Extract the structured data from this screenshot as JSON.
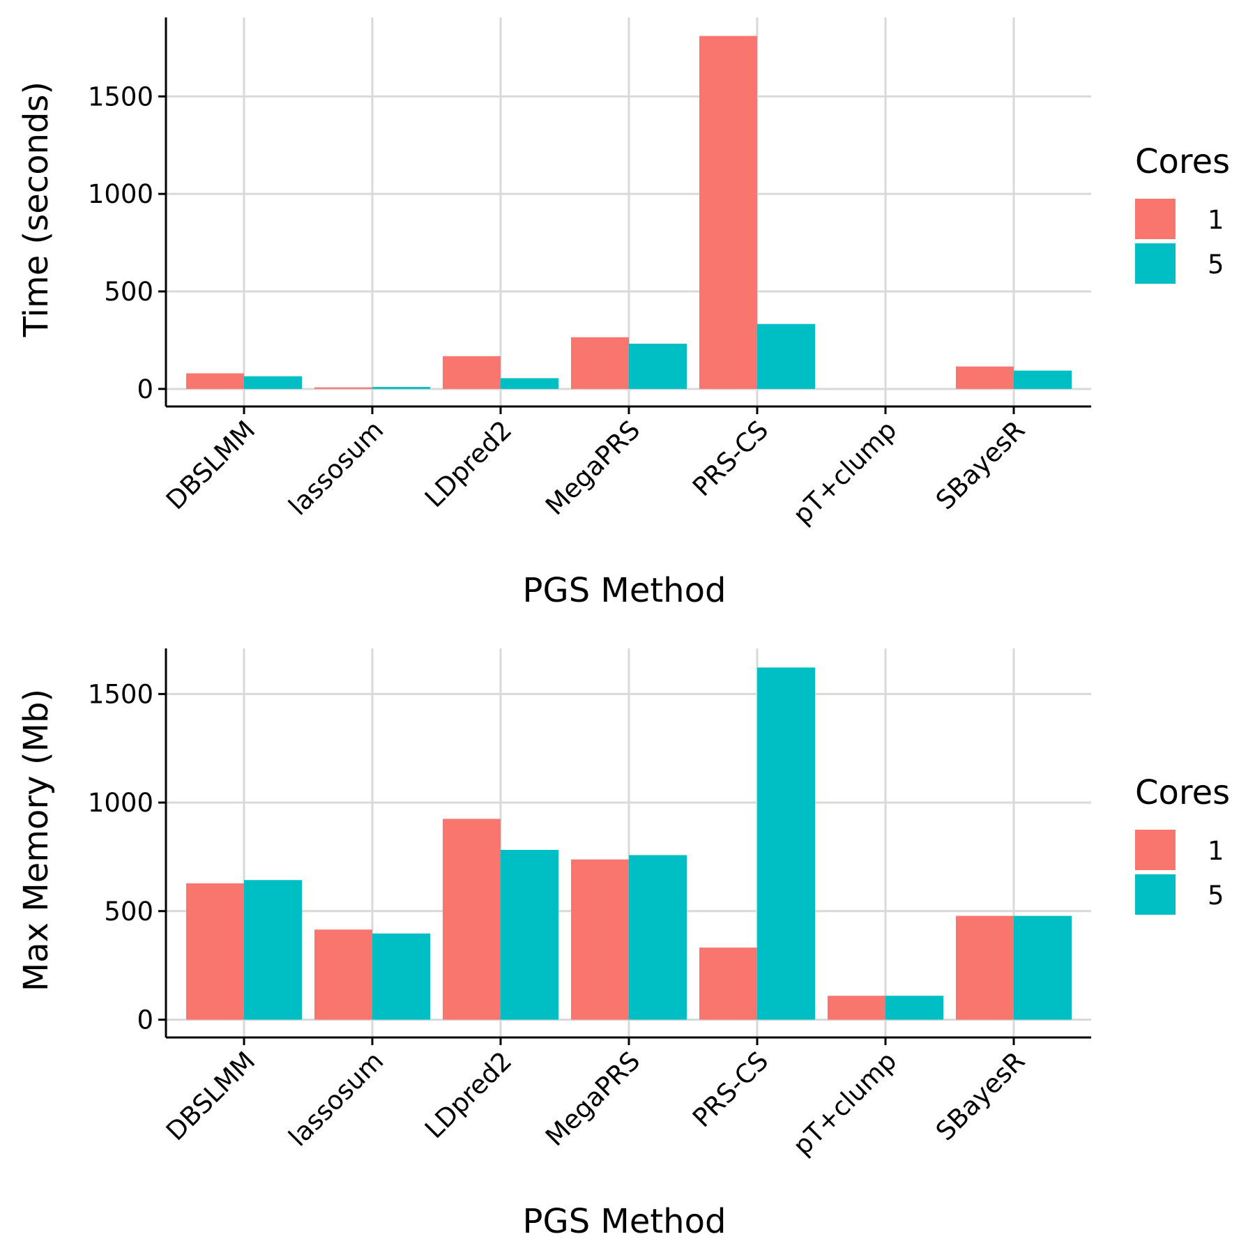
{
  "chart_data": [
    {
      "type": "bar",
      "xlabel": "PGS Method",
      "ylabel": "Time (seconds)",
      "categories": [
        "DBSLMM",
        "lassosum",
        "LDpred2",
        "MegaPRS",
        "PRS-CS",
        "pT+clump",
        "SBayesR"
      ],
      "ylim": [
        -90,
        1905
      ],
      "yticks": [
        0,
        500,
        1000,
        1500
      ],
      "grid": true,
      "legend": {
        "title": "Cores",
        "position": "right"
      },
      "series": [
        {
          "name": "1",
          "color": "#F8766D",
          "values": [
            80,
            8,
            168,
            265,
            1810,
            0,
            115
          ]
        },
        {
          "name": "5",
          "color": "#00BFC4",
          "values": [
            65,
            10,
            55,
            232,
            333,
            0,
            94
          ]
        }
      ]
    },
    {
      "type": "bar",
      "xlabel": "PGS Method",
      "ylabel": "Max Memory (Mb)",
      "categories": [
        "DBSLMM",
        "lassosum",
        "LDpred2",
        "MegaPRS",
        "PRS-CS",
        "pT+clump",
        "SBayesR"
      ],
      "ylim": [
        -82,
        1710
      ],
      "yticks": [
        0,
        500,
        1000,
        1500
      ],
      "grid": true,
      "legend": {
        "title": "Cores",
        "position": "right"
      },
      "series": [
        {
          "name": "1",
          "color": "#F8766D",
          "values": [
            628,
            415,
            925,
            738,
            332,
            110,
            478
          ]
        },
        {
          "name": "5",
          "color": "#00BFC4",
          "values": [
            643,
            397,
            782,
            758,
            1622,
            110,
            478
          ]
        }
      ]
    }
  ]
}
